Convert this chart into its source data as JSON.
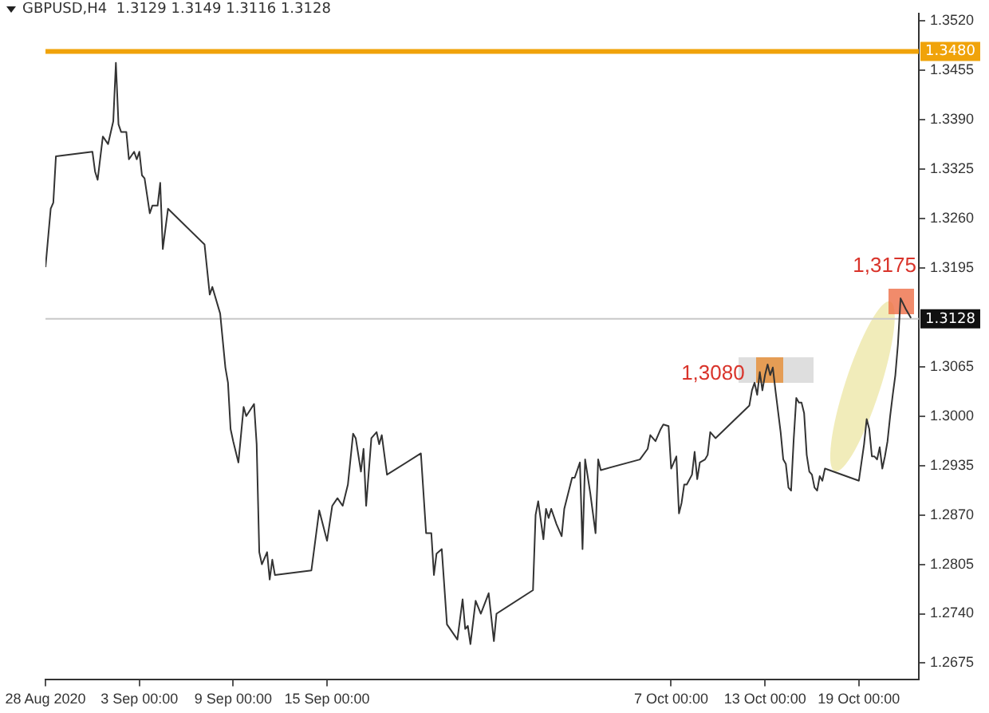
{
  "chart_data": {
    "type": "line",
    "title": "GBPUSD,H4  1.3129 1.3149 1.3116 1.3128",
    "color": "#333333",
    "marker": "none",
    "line_style": "solid",
    "grid": false,
    "legend": false,
    "x": [
      "2020-08-28T00:00",
      "2020-08-28T08:00",
      "2020-08-28T12:00",
      "2020-08-28T16:00",
      "2020-08-31T00:00",
      "2020-08-31T04:00",
      "2020-08-31T08:00",
      "2020-08-31T16:00",
      "2020-09-01T00:00",
      "2020-09-01T08:00",
      "2020-09-01T12:00",
      "2020-09-01T16:00",
      "2020-09-01T20:00",
      "2020-09-02T04:00",
      "2020-09-02T08:00",
      "2020-09-02T16:00",
      "2020-09-02T20:00",
      "2020-09-03T00:00",
      "2020-09-03T04:00",
      "2020-09-03T08:00",
      "2020-09-03T16:00",
      "2020-09-03T20:00",
      "2020-09-04T04:00",
      "2020-09-04T08:00",
      "2020-09-04T12:00",
      "2020-09-04T20:00",
      "2020-09-07T04:00",
      "2020-09-07T12:00",
      "2020-09-07T16:00",
      "2020-09-08T04:00",
      "2020-09-08T12:00",
      "2020-09-08T16:00",
      "2020-09-08T20:00",
      "2020-09-09T00:00",
      "2020-09-09T08:00",
      "2020-09-09T16:00",
      "2020-09-09T20:00",
      "2020-09-10T08:00",
      "2020-09-10T12:00",
      "2020-09-10T16:00",
      "2020-09-10T20:00",
      "2020-09-11T04:00",
      "2020-09-11T08:00",
      "2020-09-11T12:00",
      "2020-09-11T16:00",
      "2020-09-14T00:00",
      "2020-09-14T12:00",
      "2020-09-15T00:00",
      "2020-09-15T08:00",
      "2020-09-15T16:00",
      "2020-09-16T00:00",
      "2020-09-16T08:00",
      "2020-09-16T16:00",
      "2020-09-16T20:00",
      "2020-09-17T04:00",
      "2020-09-17T08:00",
      "2020-09-17T12:00",
      "2020-09-17T20:00",
      "2020-09-18T04:00",
      "2020-09-18T08:00",
      "2020-09-18T12:00",
      "2020-09-18T20:00",
      "2020-09-21T00:00",
      "2020-09-21T08:00",
      "2020-09-21T16:00",
      "2020-09-21T20:00",
      "2020-09-22T00:00",
      "2020-09-22T08:00",
      "2020-09-22T16:00",
      "2020-09-23T00:00",
      "2020-09-23T08:00",
      "2020-09-23T16:00",
      "2020-09-23T20:00",
      "2020-09-24T00:00",
      "2020-09-24T04:00",
      "2020-09-24T12:00",
      "2020-09-24T20:00",
      "2020-09-25T08:00",
      "2020-09-25T16:00",
      "2020-09-25T20:00",
      "2020-09-28T04:00",
      "2020-09-28T08:00",
      "2020-09-28T12:00",
      "2020-09-28T20:00",
      "2020-09-29T00:00",
      "2020-09-29T04:00",
      "2020-09-29T08:00",
      "2020-09-29T16:00",
      "2020-09-30T00:00",
      "2020-09-30T04:00",
      "2020-09-30T16:00",
      "2020-09-30T20:00",
      "2020-10-01T04:00",
      "2020-10-01T08:00",
      "2020-10-01T12:00",
      "2020-10-01T20:00",
      "2020-10-02T04:00",
      "2020-10-02T08:00",
      "2020-10-02T12:00",
      "2020-10-05T00:00",
      "2020-10-05T12:00",
      "2020-10-05T16:00",
      "2020-10-06T00:00",
      "2020-10-06T08:00",
      "2020-10-06T12:00",
      "2020-10-06T20:00",
      "2020-10-07T00:00",
      "2020-10-07T08:00",
      "2020-10-07T12:00",
      "2020-10-07T16:00",
      "2020-10-07T20:00",
      "2020-10-08T00:00",
      "2020-10-08T08:00",
      "2020-10-08T12:00",
      "2020-10-08T16:00",
      "2020-10-08T20:00",
      "2020-10-09T04:00",
      "2020-10-09T08:00",
      "2020-10-09T12:00",
      "2020-10-09T20:00",
      "2020-10-12T00:00",
      "2020-10-12T04:00",
      "2020-10-12T08:00",
      "2020-10-12T12:00",
      "2020-10-12T16:00",
      "2020-10-12T20:00",
      "2020-10-13T00:00",
      "2020-10-13T04:00",
      "2020-10-13T08:00",
      "2020-10-13T12:00",
      "2020-10-13T16:00",
      "2020-10-14T00:00",
      "2020-10-14T04:00",
      "2020-10-14T08:00",
      "2020-10-14T12:00",
      "2020-10-14T16:00",
      "2020-10-14T20:00",
      "2020-10-15T00:00",
      "2020-10-15T04:00",
      "2020-10-15T08:00",
      "2020-10-15T12:00",
      "2020-10-15T16:00",
      "2020-10-15T20:00",
      "2020-10-16T00:00",
      "2020-10-16T04:00",
      "2020-10-16T08:00",
      "2020-10-16T12:00",
      "2020-10-16T16:00",
      "2020-10-16T20:00",
      "2020-10-19T00:00",
      "2020-10-19T04:00",
      "2020-10-19T08:00",
      "2020-10-19T12:00",
      "2020-10-19T16:00",
      "2020-10-19T20:00",
      "2020-10-20T00:00",
      "2020-10-20T04:00",
      "2020-10-20T08:00",
      "2020-10-20T12:00",
      "2020-10-20T16:00",
      "2020-10-20T20:00",
      "2020-10-21T00:00",
      "2020-10-21T04:00",
      "2020-10-21T08:00",
      "2020-10-21T12:00",
      "2020-10-21T16:00",
      "2020-10-22T00:00",
      "2020-10-22T08:00"
    ],
    "values": [
      1.3196,
      1.3273,
      1.3281,
      1.3342,
      1.3348,
      1.3322,
      1.3311,
      1.3368,
      1.3358,
      1.3388,
      1.3465,
      1.3384,
      1.3374,
      1.3374,
      1.3338,
      1.3348,
      1.3338,
      1.3348,
      1.3317,
      1.3313,
      1.3267,
      1.3277,
      1.3277,
      1.3307,
      1.322,
      1.3273,
      1.3226,
      1.316,
      1.317,
      1.3135,
      1.3064,
      1.3044,
      1.2983,
      1.2967,
      1.2939,
      1.3012,
      1.3,
      1.3016,
      1.2963,
      1.2821,
      1.2805,
      1.2821,
      1.2785,
      1.2811,
      1.2791,
      1.2797,
      1.2876,
      1.2836,
      1.2882,
      1.2892,
      1.2882,
      1.291,
      1.2977,
      1.2971,
      1.2927,
      1.2957,
      1.2882,
      1.2971,
      1.2979,
      1.2963,
      1.2975,
      1.2923,
      1.2951,
      1.2846,
      1.2846,
      1.2791,
      1.2819,
      1.2825,
      1.2726,
      1.2716,
      1.2706,
      1.2759,
      1.272,
      1.2724,
      1.27,
      1.2757,
      1.274,
      1.2767,
      1.2704,
      1.274,
      1.2771,
      1.287,
      1.2888,
      1.2838,
      1.2878,
      1.2866,
      1.2878,
      1.2858,
      1.2842,
      1.2878,
      1.2919,
      1.2919,
      1.2939,
      1.2825,
      1.2943,
      1.2898,
      1.2846,
      1.2943,
      1.2929,
      1.2943,
      1.2957,
      1.2975,
      1.2967,
      1.2983,
      1.2989,
      1.2987,
      1.2931,
      1.2947,
      1.2872,
      1.2886,
      1.291,
      1.291,
      1.2923,
      1.2953,
      1.2917,
      1.2939,
      1.2943,
      1.2949,
      1.2979,
      1.2971,
      1.3014,
      1.3034,
      1.3044,
      1.3028,
      1.3058,
      1.3034,
      1.3054,
      1.3068,
      1.3054,
      1.3064,
      1.3034,
      1.2979,
      1.2943,
      1.2937,
      1.2906,
      1.2902,
      1.2969,
      1.3024,
      1.3018,
      1.3018,
      1.3004,
      1.2949,
      1.2927,
      1.2923,
      1.2906,
      1.2902,
      1.2921,
      1.2915,
      1.2931,
      1.2915,
      1.2939,
      1.2963,
      1.2996,
      1.2983,
      1.2947,
      1.2947,
      1.2943,
      1.2959,
      1.2931,
      1.2947,
      1.2967,
      1.3,
      1.3028,
      1.3054,
      1.3095,
      1.3155,
      1.3141,
      1.3129
    ],
    "xlim": [
      "2020-08-28T00:00",
      "2020-10-22T20:00"
    ],
    "xticks": [
      {
        "value": "2020-08-28T00:00",
        "label": "28 Aug 2020"
      },
      {
        "value": "2020-09-03T00:00",
        "label": "3 Sep 00:00"
      },
      {
        "value": "2020-09-09T00:00",
        "label": "9 Sep 00:00"
      },
      {
        "value": "2020-09-15T00:00",
        "label": "15 Sep 00:00"
      },
      {
        "value": "2020-10-07T00:00",
        "label": "7 Oct 00:00"
      },
      {
        "value": "2020-10-13T00:00",
        "label": "13 Oct 00:00"
      },
      {
        "value": "2020-10-19T00:00",
        "label": "19 Oct 00:00"
      }
    ],
    "ylim": [
      1.2653,
      1.353
    ],
    "yticks": [
      {
        "value": 1.352,
        "label": "1.3520"
      },
      1.3455,
      {
        "value": 1.339,
        "label": "1.3390"
      },
      1.3325,
      {
        "value": 1.326,
        "label": "1.3260"
      },
      1.3195,
      1.3065,
      {
        "value": 1.3,
        "label": "1.3000"
      },
      1.2935,
      {
        "value": 1.287,
        "label": "1.2870"
      },
      1.2805,
      {
        "value": 1.274,
        "label": "1.2740"
      },
      1.2675
    ],
    "ref_lines": [
      {
        "axis": "y",
        "value": 1.348,
        "label": "1.3480",
        "color": "#f0a30a"
      },
      {
        "axis": "y",
        "value": 1.3128,
        "label": "1.3128",
        "color": "#c8c8c8"
      }
    ],
    "annotations": [
      {
        "text": "1,3080",
        "x": "2020-10-13T08:00",
        "y": 1.3068
      },
      {
        "text": "1,3175",
        "x": "2020-10-21T16:00",
        "y": 1.3155
      }
    ]
  }
}
